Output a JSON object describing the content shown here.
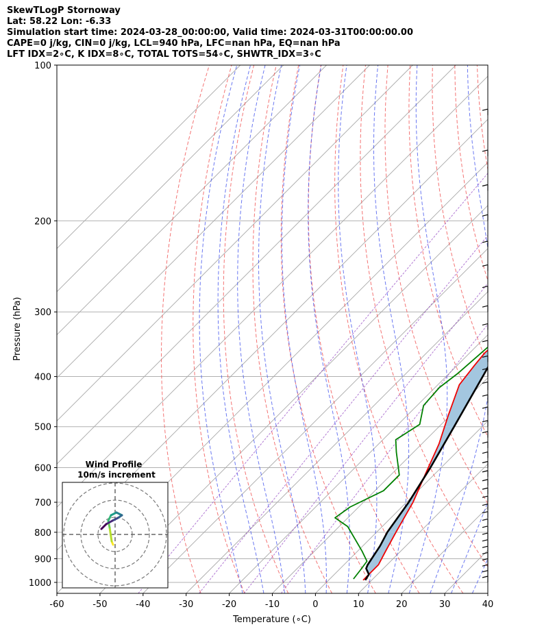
{
  "header": {
    "line1": "SkewTLogP Stornoway",
    "line2": "Lat: 58.22   Lon: -6.33",
    "line3": "Simulation start time: 2024-03-28_00:00:00, Valid time: 2024-03-31T00:00:00.00",
    "line4": "CAPE=0 j/kg, CIN=0 j/kg, LCL=940 hPa, LFC=nan hPa, EQ=nan hPa",
    "line5": "LFT IDX=2∘C, K IDX=8∘C, TOTAL TOTS=54∘C, SHWTR_IDX=3∘C"
  },
  "chart_data": {
    "type": "line",
    "xlabel": "Temperature (∘C)",
    "ylabel": "Pressure (hPa)",
    "xlim": [
      -60,
      40
    ],
    "ylim": [
      1050,
      100
    ],
    "y_scale": "log",
    "x_ticks": [
      -60,
      -50,
      -40,
      -30,
      -20,
      -10,
      0,
      10,
      20,
      30,
      40
    ],
    "y_ticks": [
      1000,
      900,
      800,
      700,
      600,
      500,
      400,
      300,
      200,
      100
    ],
    "grid": true,
    "series": [
      {
        "role": "temperature",
        "color": "#ee0000",
        "points": [
          [
            8.0,
            990
          ],
          [
            8.0,
            925
          ],
          [
            6.5,
            870
          ],
          [
            4.5,
            800
          ],
          [
            1.5,
            700
          ],
          [
            -2.5,
            610
          ],
          [
            -6.0,
            540
          ],
          [
            -10.5,
            475
          ],
          [
            -15.0,
            415
          ],
          [
            -16.0,
            380
          ],
          [
            -16.5,
            360
          ],
          [
            -16.0,
            330
          ],
          [
            -15.5,
            300
          ],
          [
            -14.5,
            285
          ],
          [
            -11.0,
            262
          ],
          [
            -6.0,
            235
          ],
          [
            -2.0,
            215
          ],
          [
            2.5,
            196
          ],
          [
            4.0,
            190
          ],
          [
            9.0,
            160
          ],
          [
            12.0,
            150
          ],
          [
            15.0,
            135
          ],
          [
            17.0,
            123
          ],
          [
            20.0,
            108
          ],
          [
            22.5,
            100
          ]
        ]
      },
      {
        "role": "dewpoint",
        "color": "#008000",
        "points": [
          [
            5.5,
            985
          ],
          [
            5.0,
            945
          ],
          [
            4.5,
            910
          ],
          [
            1.0,
            870
          ],
          [
            -8.0,
            780
          ],
          [
            -13.0,
            750
          ],
          [
            -12.0,
            715
          ],
          [
            -8.0,
            665
          ],
          [
            -8.0,
            620
          ],
          [
            -14.0,
            560
          ],
          [
            -17.0,
            530
          ],
          [
            -15.0,
            495
          ],
          [
            -18.5,
            455
          ],
          [
            -19.0,
            420
          ],
          [
            -18.0,
            395
          ],
          [
            -17.0,
            345
          ],
          [
            -16.5,
            310
          ],
          [
            -16.5,
            295
          ],
          [
            -17.0,
            250
          ],
          [
            -18.0,
            230
          ],
          [
            -20.0,
            208
          ],
          [
            -27.0,
            185
          ],
          [
            -23.0,
            150
          ],
          [
            -17.5,
            125
          ],
          [
            -13.0,
            110
          ],
          [
            -10.0,
            100
          ]
        ]
      },
      {
        "role": "parcel",
        "color": "#000000",
        "points": [
          [
            8.5,
            990
          ],
          [
            8.0,
            965
          ],
          [
            6.0,
            940
          ],
          [
            5.5,
            925
          ],
          [
            4.0,
            850
          ],
          [
            2.5,
            800
          ],
          [
            0.5,
            700
          ],
          [
            -2.5,
            600
          ],
          [
            -6.5,
            500
          ],
          [
            -11.5,
            400
          ],
          [
            -18.0,
            300
          ],
          [
            -26.0,
            230
          ],
          [
            -30.0,
            200
          ],
          [
            -37.0,
            150
          ],
          [
            -43.0,
            125
          ],
          [
            -47.0,
            100
          ]
        ]
      }
    ],
    "cape_cin_shading": "#a3c6df",
    "wind_barbs": true,
    "hodograph": {
      "title": "Wind Profile",
      "subtitle": "10m/s increment",
      "rings": 3
    }
  }
}
